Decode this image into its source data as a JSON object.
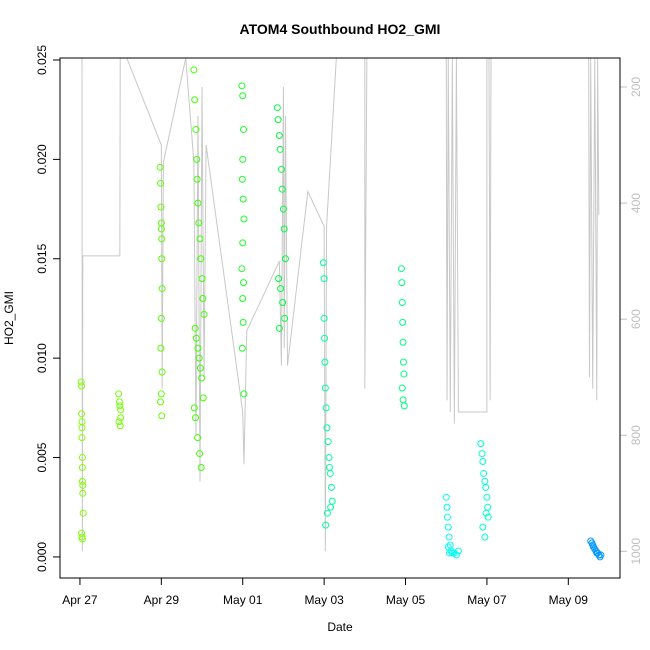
{
  "chart_data": {
    "type": "scatter",
    "title": "ATOM4 Southbound HO2_GMI",
    "x_label": "Date",
    "y_label": "HO2_GMI",
    "xlim": [
      -0.49,
      13.27
    ],
    "xticks": [
      {
        "value": 0,
        "label": "Apr 27"
      },
      {
        "value": 2,
        "label": "Apr 29"
      },
      {
        "value": 4,
        "label": "May 01"
      },
      {
        "value": 6,
        "label": "May 03"
      },
      {
        "value": 8,
        "label": "May 05"
      },
      {
        "value": 10,
        "label": "May 07"
      },
      {
        "value": 12,
        "label": "May 09"
      }
    ],
    "ylim": [
      -0.00106,
      0.0251
    ],
    "yticks": [
      {
        "value": 0,
        "label": "0.000"
      },
      {
        "value": 0.005,
        "label": "0.005"
      },
      {
        "value": 0.01,
        "label": "0.010"
      },
      {
        "value": 0.015,
        "label": "0.015"
      },
      {
        "value": 0.02,
        "label": "0.020"
      },
      {
        "value": 0.025,
        "label": "0.025"
      }
    ],
    "y2lim": [
      1046,
      150
    ],
    "y2ticks": [
      200,
      400,
      600,
      800,
      1000
    ],
    "y2_color": "#bebebe",
    "series": [
      {
        "type": "line",
        "axis": "y2",
        "color": "#c8c8c8",
        "x": [
          0,
          0.05,
          0.06,
          0.07,
          0.98,
          0.99,
          1.15,
          2.0,
          2.02,
          2.05,
          2.6,
          2.8,
          2.85,
          2.9,
          2.95,
          3.0,
          3.05,
          3.1,
          4.0,
          4.03,
          4.1,
          4.9,
          4.95,
          5.0,
          5.02,
          5.05,
          5.1,
          5.6,
          6.0,
          6.03,
          6.06,
          6.3,
          7.0,
          7.0,
          7.05,
          9.0,
          9.02,
          9.05,
          9.1,
          9.15,
          9.2,
          9.25,
          9.3,
          10.0,
          10.0,
          10.05,
          10.08,
          10.1,
          12.5,
          12.52,
          12.55,
          12.6,
          12.65,
          12.7,
          12.72,
          12.75
        ],
        "values": [
          150,
          150,
          1000,
          491,
          491,
          150,
          150,
          300,
          720,
          330,
          150,
          330,
          800,
          250,
          880,
          200,
          700,
          300,
          760,
          850,
          620,
          500,
          680,
          200,
          650,
          250,
          680,
          380,
          440,
          1000,
          440,
          150,
          150,
          720,
          150,
          150,
          740,
          150,
          760,
          150,
          780,
          150,
          760,
          760,
          150,
          150,
          740,
          150,
          150,
          700,
          150,
          720,
          150,
          740,
          150,
          420
        ]
      },
      {
        "color": "#80ff00",
        "x": [
          0.03,
          0.04,
          0.04,
          0.05,
          0.05,
          0.05,
          0.06,
          0.06,
          0.06,
          0.07,
          0.07,
          0.08,
          0.04,
          0.05,
          0.06
        ],
        "values": [
          0.0088,
          0.0086,
          0.0072,
          0.0068,
          0.0065,
          0.006,
          0.005,
          0.0045,
          0.0038,
          0.0036,
          0.0032,
          0.0022,
          0.0012,
          0.001,
          0.0009
        ]
      },
      {
        "color": "#73ff00",
        "x": [
          0.95,
          0.97,
          0.98,
          1.0,
          1.0,
          0.96,
          0.99
        ],
        "values": [
          0.0082,
          0.0078,
          0.0076,
          0.0074,
          0.007,
          0.0068,
          0.0066
        ]
      },
      {
        "color": "#5cff00",
        "x": [
          1.97,
          1.98,
          1.99,
          2.0,
          2.0,
          2.01,
          2.01,
          2.02,
          2.0,
          1.99,
          2.02,
          2.0,
          1.98,
          2.01
        ],
        "values": [
          0.0196,
          0.0188,
          0.0176,
          0.0168,
          0.0165,
          0.016,
          0.015,
          0.0135,
          0.012,
          0.0105,
          0.0093,
          0.0082,
          0.0078,
          0.0071
        ]
      },
      {
        "color": "#40ff00",
        "x": [
          2.8,
          2.82,
          2.85,
          2.87,
          2.88,
          2.9,
          2.92,
          2.95,
          2.97,
          3.0,
          3.02,
          3.05,
          2.83,
          2.86,
          2.9,
          2.93,
          2.96,
          2.99,
          3.03,
          2.81,
          2.84,
          2.89,
          2.94,
          2.98
        ],
        "values": [
          0.0245,
          0.023,
          0.0215,
          0.02,
          0.019,
          0.0178,
          0.0168,
          0.016,
          0.015,
          0.014,
          0.013,
          0.0122,
          0.0115,
          0.011,
          0.0105,
          0.01,
          0.0095,
          0.009,
          0.008,
          0.0075,
          0.007,
          0.006,
          0.0052,
          0.0045
        ]
      },
      {
        "color": "#1aff26",
        "x": [
          3.98,
          4.0,
          4.02,
          4.0,
          3.99,
          4.01,
          4.03,
          4.0,
          3.98,
          4.02,
          4.0,
          4.01,
          3.99,
          4.03
        ],
        "values": [
          0.0237,
          0.0232,
          0.0215,
          0.02,
          0.019,
          0.018,
          0.017,
          0.0158,
          0.0145,
          0.0138,
          0.013,
          0.0118,
          0.0105,
          0.0082
        ]
      },
      {
        "color": "#00ff3c",
        "x": [
          4.85,
          4.87,
          4.9,
          4.92,
          4.95,
          4.97,
          5.0,
          5.02,
          5.05,
          4.88,
          4.93,
          4.98,
          5.03,
          4.9
        ],
        "values": [
          0.0226,
          0.022,
          0.0212,
          0.0205,
          0.0195,
          0.0185,
          0.0175,
          0.0165,
          0.015,
          0.014,
          0.0135,
          0.0128,
          0.012,
          0.0115
        ]
      },
      {
        "color": "#00ff9e",
        "x": [
          5.98,
          6.0,
          6.0,
          6.01,
          6.02,
          6.03,
          6.05,
          6.07,
          6.1,
          6.12,
          6.15,
          6.18,
          6.2,
          6.08,
          6.04,
          6.13,
          6.16
        ],
        "values": [
          0.0148,
          0.014,
          0.012,
          0.011,
          0.0098,
          0.0085,
          0.0075,
          0.0065,
          0.0058,
          0.005,
          0.0042,
          0.0035,
          0.0028,
          0.0022,
          0.0016,
          0.0045,
          0.0025
        ]
      },
      {
        "color": "#00ff80",
        "x": [
          7.9,
          7.91,
          7.92,
          7.93,
          7.94,
          7.95,
          7.96,
          7.92,
          7.94,
          7.97
        ],
        "values": [
          0.0145,
          0.0138,
          0.0128,
          0.0118,
          0.0108,
          0.0098,
          0.0092,
          0.0085,
          0.0079,
          0.0076
        ]
      },
      {
        "color": "#00fff0",
        "x": [
          9.0,
          9.02,
          9.03,
          9.05,
          9.07,
          9.1,
          9.12,
          9.15,
          9.2,
          9.25,
          9.3,
          9.05,
          9.08
        ],
        "values": [
          0.003,
          0.0025,
          0.002,
          0.0015,
          0.001,
          0.0006,
          0.0003,
          0.0002,
          0.0002,
          0.0001,
          0.0003,
          0.0005,
          0.0002
        ]
      },
      {
        "color": "#00ffd0",
        "x": [
          9.85,
          9.88,
          9.9,
          9.92,
          9.95,
          9.97,
          10.0,
          10.02,
          10.03,
          9.9,
          9.95,
          9.98
        ],
        "values": [
          0.0057,
          0.0052,
          0.0048,
          0.0042,
          0.0038,
          0.0035,
          0.003,
          0.0025,
          0.002,
          0.0015,
          0.001,
          0.0022
        ]
      },
      {
        "color": "#0096ff",
        "x": [
          12.55,
          12.58,
          12.6,
          12.62,
          12.65,
          12.68,
          12.7,
          12.72,
          12.75,
          12.78,
          12.8
        ],
        "values": [
          0.0008,
          0.0007,
          0.0006,
          0.0005,
          0.0004,
          0.0003,
          0.0002,
          0.0002,
          0.0001,
          0,
          0.0001
        ]
      }
    ]
  }
}
